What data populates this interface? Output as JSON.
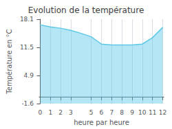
{
  "chart_data": {
    "type": "area",
    "title": "Evolution de la température",
    "xlabel": "heure par heure",
    "ylabel": "Température en °C",
    "x": [
      0,
      1,
      2,
      3,
      4,
      5,
      6,
      7,
      8,
      9,
      10,
      11,
      12
    ],
    "values": [
      16.8,
      16.3,
      16.0,
      15.5,
      14.8,
      14.0,
      12.3,
      12.1,
      12.1,
      12.1,
      12.3,
      13.8,
      16.2
    ],
    "color": "#5bc8e8",
    "xlim": [
      -0.1,
      12.1
    ],
    "xticks": [
      0,
      1,
      2,
      3,
      5,
      6,
      7,
      8,
      9,
      10,
      11,
      12
    ],
    "ylim": [
      -1.6,
      18.1
    ],
    "yticks": [
      -1.6,
      4.9,
      11.5,
      18.1
    ],
    "grid": "x"
  }
}
